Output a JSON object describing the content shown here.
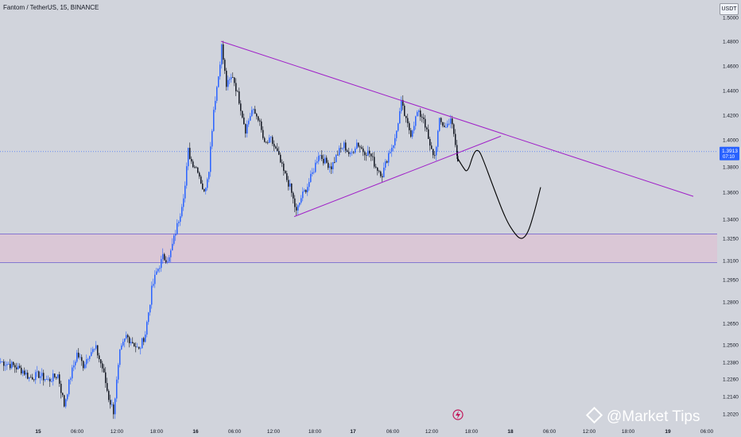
{
  "header": {
    "symbol_title": "Fantom / TetherUS, 15, BINANCE",
    "currency_button": "USDT"
  },
  "watermark": {
    "text": "@Market Tips",
    "icon": "diamond-logo-icon"
  },
  "badge": {
    "icon": "tradingview-lightning-icon"
  },
  "colors": {
    "background": "#d1d4dc",
    "up_candle": "#2962ff",
    "down_candle": "#131722",
    "trendline": "#a020c8",
    "zone_fill": "#dcc3d4",
    "zone_border": "#6a5acd",
    "price_line": "#2962ff",
    "projection": "#000000"
  },
  "chart_data": {
    "type": "candlestick",
    "title": "Fantom / TetherUS, 15, BINANCE",
    "y_axis": {
      "ticks": [
        "1.5000",
        "1.4800",
        "1.4600",
        "1.4400",
        "1.4200",
        "1.4000",
        "1.3800",
        "1.3600",
        "1.3400",
        "1.3250",
        "1.3100",
        "1.2950",
        "1.2800",
        "1.2650",
        "1.2500",
        "1.2380",
        "1.2260",
        "1.2140",
        "1.2020"
      ],
      "ylim": [
        1.2,
        1.505
      ]
    },
    "x_axis": {
      "ticks": [
        "15",
        "06:00",
        "12:00",
        "18:00",
        "16",
        "06:00",
        "12:00",
        "18:00",
        "17",
        "06:00",
        "12:00",
        "18:00",
        "18",
        "06:00",
        "12:00",
        "18:00",
        "19",
        "06:00"
      ]
    },
    "last_price": {
      "value": 1.3913,
      "label": "1.3913",
      "countdown": "07:10"
    },
    "candles_close_path": [
      [
        0,
        1.2385
      ],
      [
        14,
        1.236
      ],
      [
        28,
        1.232
      ],
      [
        36,
        1.227
      ],
      [
        48,
        1.229
      ],
      [
        60,
        1.225
      ],
      [
        72,
        1.229
      ],
      [
        80,
        1.208
      ],
      [
        88,
        1.228
      ],
      [
        96,
        1.244
      ],
      [
        104,
        1.236
      ],
      [
        112,
        1.245
      ],
      [
        120,
        1.247
      ],
      [
        128,
        1.234
      ],
      [
        136,
        1.213
      ],
      [
        142,
        1.204
      ],
      [
        150,
        1.244
      ],
      [
        158,
        1.256
      ],
      [
        166,
        1.252
      ],
      [
        174,
        1.246
      ],
      [
        182,
        1.258
      ],
      [
        190,
        1.288
      ],
      [
        196,
        1.301
      ],
      [
        204,
        1.312
      ],
      [
        212,
        1.311
      ],
      [
        218,
        1.325
      ],
      [
        226,
        1.345
      ],
      [
        232,
        1.365
      ],
      [
        236,
        1.392
      ],
      [
        240,
        1.384
      ],
      [
        248,
        1.378
      ],
      [
        256,
        1.359
      ],
      [
        262,
        1.379
      ],
      [
        268,
        1.425
      ],
      [
        274,
        1.452
      ],
      [
        278,
        1.476
      ],
      [
        284,
        1.444
      ],
      [
        292,
        1.452
      ],
      [
        300,
        1.432
      ],
      [
        308,
        1.408
      ],
      [
        316,
        1.424
      ],
      [
        324,
        1.418
      ],
      [
        332,
        1.396
      ],
      [
        340,
        1.4
      ],
      [
        348,
        1.39
      ],
      [
        356,
        1.376
      ],
      [
        364,
        1.364
      ],
      [
        372,
        1.345
      ],
      [
        378,
        1.356
      ],
      [
        386,
        1.365
      ],
      [
        394,
        1.378
      ],
      [
        400,
        1.39
      ],
      [
        408,
        1.384
      ],
      [
        416,
        1.38
      ],
      [
        424,
        1.39
      ],
      [
        432,
        1.396
      ],
      [
        440,
        1.388
      ],
      [
        448,
        1.398
      ],
      [
        456,
        1.392
      ],
      [
        464,
        1.39
      ],
      [
        472,
        1.38
      ],
      [
        480,
        1.374
      ],
      [
        488,
        1.39
      ],
      [
        496,
        1.4
      ],
      [
        504,
        1.43
      ],
      [
        510,
        1.415
      ],
      [
        516,
        1.405
      ],
      [
        524,
        1.422
      ],
      [
        532,
        1.418
      ],
      [
        540,
        1.394
      ],
      [
        546,
        1.388
      ],
      [
        552,
        1.415
      ],
      [
        560,
        1.41
      ],
      [
        566,
        1.418
      ],
      [
        572,
        1.396
      ],
      [
        575,
        1.384
      ]
    ],
    "annotations": [
      {
        "kind": "descending_trendline",
        "points": [
          [
            278,
            1.48
          ],
          [
            872,
            1.357
          ]
        ]
      },
      {
        "kind": "ascending_trendline",
        "points": [
          [
            370,
            1.342
          ],
          [
            630,
            1.403
          ]
        ]
      },
      {
        "kind": "support_zone",
        "range": [
          1.3085,
          1.3285
        ]
      },
      {
        "kind": "projection_path",
        "points": [
          [
            575,
            1.387
          ],
          [
            582,
            1.38
          ],
          [
            588,
            1.375
          ],
          [
            596,
            1.391
          ],
          [
            602,
            1.393
          ],
          [
            608,
            1.385
          ],
          [
            620,
            1.365
          ],
          [
            636,
            1.34
          ],
          [
            648,
            1.328
          ],
          [
            656,
            1.324
          ],
          [
            664,
            1.329
          ],
          [
            672,
            1.345
          ],
          [
            680,
            1.364
          ]
        ]
      }
    ],
    "grid": false,
    "legend": "none"
  }
}
